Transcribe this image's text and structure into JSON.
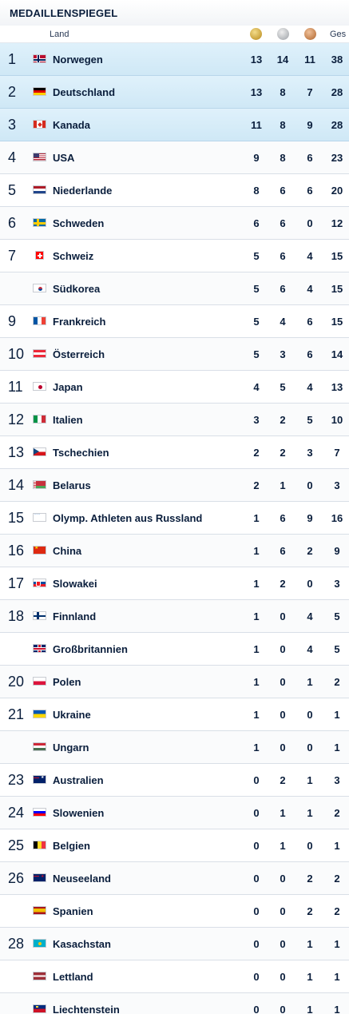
{
  "title": "MEDAILLENSPIEGEL",
  "columns": {
    "land": "Land",
    "gold_icon": "gold-medal-icon",
    "silver_icon": "silver-medal-icon",
    "bronze_icon": "bronze-medal-icon",
    "total": "Ges"
  },
  "colors": {
    "highlight_top3": "#d6ecf8",
    "text": "#0a1e3c",
    "divider": "#d9dfe7"
  },
  "rows": [
    {
      "rank": "1",
      "country": "Norwegen",
      "flag": "flag-norway-icon",
      "gold": "13",
      "silver": "14",
      "bronze": "11",
      "total": "38"
    },
    {
      "rank": "2",
      "country": "Deutschland",
      "flag": "flag-germany-icon",
      "gold": "13",
      "silver": "8",
      "bronze": "7",
      "total": "28"
    },
    {
      "rank": "3",
      "country": "Kanada",
      "flag": "flag-canada-icon",
      "gold": "11",
      "silver": "8",
      "bronze": "9",
      "total": "28"
    },
    {
      "rank": "4",
      "country": "USA",
      "flag": "flag-usa-icon",
      "gold": "9",
      "silver": "8",
      "bronze": "6",
      "total": "23"
    },
    {
      "rank": "5",
      "country": "Niederlande",
      "flag": "flag-netherlands-icon",
      "gold": "8",
      "silver": "6",
      "bronze": "6",
      "total": "20"
    },
    {
      "rank": "6",
      "country": "Schweden",
      "flag": "flag-sweden-icon",
      "gold": "6",
      "silver": "6",
      "bronze": "0",
      "total": "12"
    },
    {
      "rank": "7",
      "country": "Schweiz",
      "flag": "flag-switzerland-icon",
      "gold": "5",
      "silver": "6",
      "bronze": "4",
      "total": "15"
    },
    {
      "rank": "",
      "country": "Südkorea",
      "flag": "flag-south-korea-icon",
      "gold": "5",
      "silver": "6",
      "bronze": "4",
      "total": "15"
    },
    {
      "rank": "9",
      "country": "Frankreich",
      "flag": "flag-france-icon",
      "gold": "5",
      "silver": "4",
      "bronze": "6",
      "total": "15"
    },
    {
      "rank": "10",
      "country": "Österreich",
      "flag": "flag-austria-icon",
      "gold": "5",
      "silver": "3",
      "bronze": "6",
      "total": "14"
    },
    {
      "rank": "11",
      "country": "Japan",
      "flag": "flag-japan-icon",
      "gold": "4",
      "silver": "5",
      "bronze": "4",
      "total": "13"
    },
    {
      "rank": "12",
      "country": "Italien",
      "flag": "flag-italy-icon",
      "gold": "3",
      "silver": "2",
      "bronze": "5",
      "total": "10"
    },
    {
      "rank": "13",
      "country": "Tschechien",
      "flag": "flag-czechia-icon",
      "gold": "2",
      "silver": "2",
      "bronze": "3",
      "total": "7"
    },
    {
      "rank": "14",
      "country": "Belarus",
      "flag": "flag-belarus-icon",
      "gold": "2",
      "silver": "1",
      "bronze": "0",
      "total": "3"
    },
    {
      "rank": "15",
      "country": "Olymp. Athleten aus Russland",
      "flag": "olympic-rings-icon",
      "gold": "1",
      "silver": "6",
      "bronze": "9",
      "total": "16"
    },
    {
      "rank": "16",
      "country": "China",
      "flag": "flag-china-icon",
      "gold": "1",
      "silver": "6",
      "bronze": "2",
      "total": "9"
    },
    {
      "rank": "17",
      "country": "Slowakei",
      "flag": "flag-slovakia-icon",
      "gold": "1",
      "silver": "2",
      "bronze": "0",
      "total": "3"
    },
    {
      "rank": "18",
      "country": "Finnland",
      "flag": "flag-finland-icon",
      "gold": "1",
      "silver": "0",
      "bronze": "4",
      "total": "5"
    },
    {
      "rank": "",
      "country": "Großbritannien",
      "flag": "flag-great-britain-icon",
      "gold": "1",
      "silver": "0",
      "bronze": "4",
      "total": "5"
    },
    {
      "rank": "20",
      "country": "Polen",
      "flag": "flag-poland-icon",
      "gold": "1",
      "silver": "0",
      "bronze": "1",
      "total": "2"
    },
    {
      "rank": "21",
      "country": "Ukraine",
      "flag": "flag-ukraine-icon",
      "gold": "1",
      "silver": "0",
      "bronze": "0",
      "total": "1"
    },
    {
      "rank": "",
      "country": "Ungarn",
      "flag": "flag-hungary-icon",
      "gold": "1",
      "silver": "0",
      "bronze": "0",
      "total": "1"
    },
    {
      "rank": "23",
      "country": "Australien",
      "flag": "flag-australia-icon",
      "gold": "0",
      "silver": "2",
      "bronze": "1",
      "total": "3"
    },
    {
      "rank": "24",
      "country": "Slowenien",
      "flag": "flag-slovenia-icon",
      "gold": "0",
      "silver": "1",
      "bronze": "1",
      "total": "2"
    },
    {
      "rank": "25",
      "country": "Belgien",
      "flag": "flag-belgium-icon",
      "gold": "0",
      "silver": "1",
      "bronze": "0",
      "total": "1"
    },
    {
      "rank": "26",
      "country": "Neuseeland",
      "flag": "flag-new-zealand-icon",
      "gold": "0",
      "silver": "0",
      "bronze": "2",
      "total": "2"
    },
    {
      "rank": "",
      "country": "Spanien",
      "flag": "flag-spain-icon",
      "gold": "0",
      "silver": "0",
      "bronze": "2",
      "total": "2"
    },
    {
      "rank": "28",
      "country": "Kasachstan",
      "flag": "flag-kazakhstan-icon",
      "gold": "0",
      "silver": "0",
      "bronze": "1",
      "total": "1"
    },
    {
      "rank": "",
      "country": "Lettland",
      "flag": "flag-latvia-icon",
      "gold": "0",
      "silver": "0",
      "bronze": "1",
      "total": "1"
    },
    {
      "rank": "",
      "country": "Liechtenstein",
      "flag": "flag-liechtenstein-icon",
      "gold": "0",
      "silver": "0",
      "bronze": "1",
      "total": "1"
    }
  ]
}
